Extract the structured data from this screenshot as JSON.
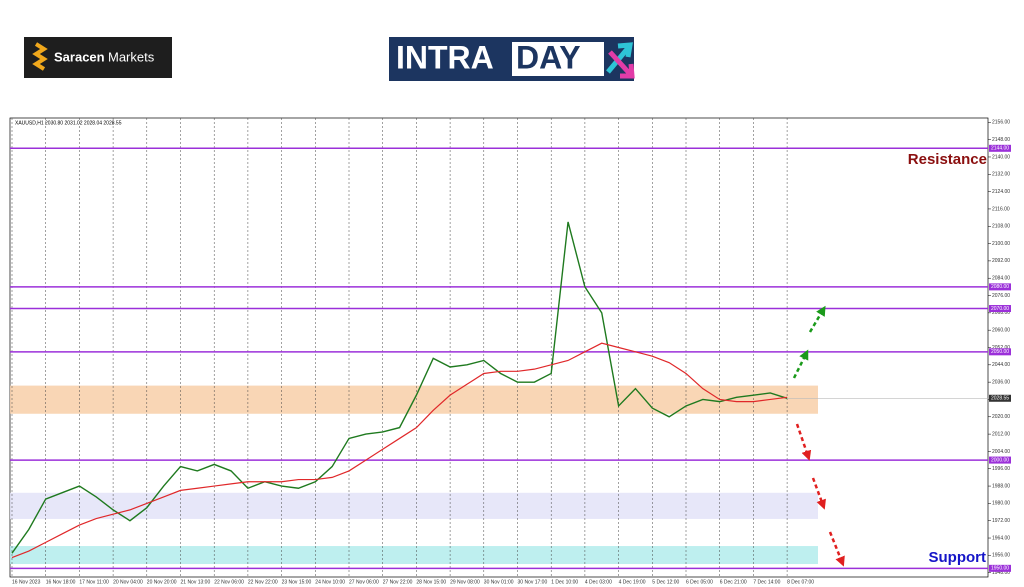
{
  "header": {
    "brand": [
      "Saracen",
      "Markets"
    ],
    "banner": [
      "INTRA",
      "DAY"
    ]
  },
  "chart_data": {
    "type": "line",
    "title": "XAUUSD,H1  2030.80 2031.02 2028.04 2028.55",
    "categories": [
      "16 Nov 2023",
      null,
      "16 Nov 18:00",
      null,
      "17 Nov 11:00",
      null,
      "20 Nov 04:00",
      null,
      "20 Nov 20:00",
      null,
      "21 Nov 13:00",
      null,
      "22 Nov 06:00",
      null,
      "22 Nov 22:00",
      null,
      "23 Nov 15:00",
      null,
      "24 Nov 10:00",
      null,
      "27 Nov 06:00",
      null,
      "27 Nov 22:00",
      null,
      "28 Nov 15:00",
      null,
      "29 Nov 08:00",
      null,
      "30 Nov 01:00",
      null,
      "30 Nov 17:00",
      null,
      "1 Dec 10:00",
      null,
      "4 Dec 03:00",
      null,
      "4 Dec 19:00",
      null,
      "5 Dec 12:00",
      null,
      "6 Dec 05:00",
      null,
      "6 Dec 21:00",
      null,
      "7 Dec 14:00",
      null,
      "8 Dec 07:00"
    ],
    "series": [
      {
        "color": "#1f7a1f",
        "values": [
          1957,
          1968,
          1982,
          1985,
          1988,
          1983,
          1977,
          1972,
          1978,
          1988,
          1997,
          1995,
          1998,
          1995,
          1987,
          1990,
          1988,
          1987,
          1990,
          1997,
          2010,
          2012,
          2013,
          2015,
          2030,
          2047,
          2043,
          2044,
          2046,
          2040,
          2036,
          2036,
          2040,
          2110,
          2080,
          2068,
          2025,
          2033,
          2024,
          2020,
          2025,
          2028,
          2027,
          2029,
          2030,
          2031,
          2028.55
        ]
      },
      {
        "color": "#e0282a",
        "values": [
          1955,
          1958,
          1962,
          1966,
          1970,
          1973,
          1975,
          1977,
          1980,
          1983,
          1986,
          1987,
          1988,
          1989,
          1990,
          1990,
          1990,
          1991,
          1991,
          1992,
          1995,
          2000,
          2005,
          2010,
          2015,
          2023,
          2030,
          2035,
          2040,
          2041,
          2041,
          2042,
          2044,
          2046,
          2050,
          2054,
          2052,
          2050,
          2048,
          2045,
          2040,
          2033,
          2028,
          2027,
          2027,
          2028,
          2029
        ]
      }
    ],
    "levels": {
      "color": "#9b30d9",
      "values": [
        2144,
        2080,
        2070,
        2050,
        2000,
        1950
      ],
      "value_labels": [
        "2144.00",
        "2080.00",
        "2070.00",
        "2050.00",
        "2000.00",
        "1950.00"
      ]
    },
    "zones": [
      {
        "color": "#f8cfa8",
        "range": [
          2021.4,
          2034.4
        ]
      },
      {
        "color": "#e3e3f8",
        "range": [
          1972.8,
          1984.9
        ]
      },
      {
        "color": "#b3ecec",
        "range": [
          1952,
          1960.3
        ]
      }
    ],
    "last_price": {
      "value": 2028.55,
      "label": "2028.55"
    },
    "annotations": [
      "Resistance",
      "Support"
    ],
    "ylim": [
      1946,
      2158
    ],
    "yticks": [
      {
        "value": 1948,
        "label": "1948.00"
      },
      {
        "value": 1956,
        "label": "1956.00"
      },
      {
        "value": 1964,
        "label": "1964.00"
      },
      {
        "value": 1972,
        "label": "1972.00"
      },
      {
        "value": 1980,
        "label": "1980.00"
      },
      {
        "value": 1988,
        "label": "1988.00"
      },
      {
        "value": 1996,
        "label": "1996.00"
      },
      {
        "value": 2004,
        "label": "2004.00"
      },
      {
        "value": 2012,
        "label": "2012.00"
      },
      {
        "value": 2020,
        "label": "2020.00"
      },
      {
        "value": 2028,
        "label": "2028.00"
      },
      {
        "value": 2036,
        "label": "2036.00"
      },
      {
        "value": 2044,
        "label": "2044.00"
      },
      {
        "value": 2052,
        "label": "2052.00"
      },
      {
        "value": 2060,
        "label": "2060.00"
      },
      {
        "value": 2068,
        "label": "2068.00"
      },
      {
        "value": 2076,
        "label": "2076.00"
      },
      {
        "value": 2084,
        "label": "2084.00"
      },
      {
        "value": 2092,
        "label": "2092.00"
      },
      {
        "value": 2100,
        "label": "2100.00"
      },
      {
        "value": 2108,
        "label": "2108.00"
      },
      {
        "value": 2116,
        "label": "2116.00"
      },
      {
        "value": 2124,
        "label": "2124.00"
      },
      {
        "value": 2132,
        "label": "2132.00"
      },
      {
        "value": 2140,
        "label": "2140.00"
      },
      {
        "value": 2148,
        "label": "2148.00"
      },
      {
        "value": 2156,
        "label": "2156.00"
      }
    ],
    "grid": true
  }
}
